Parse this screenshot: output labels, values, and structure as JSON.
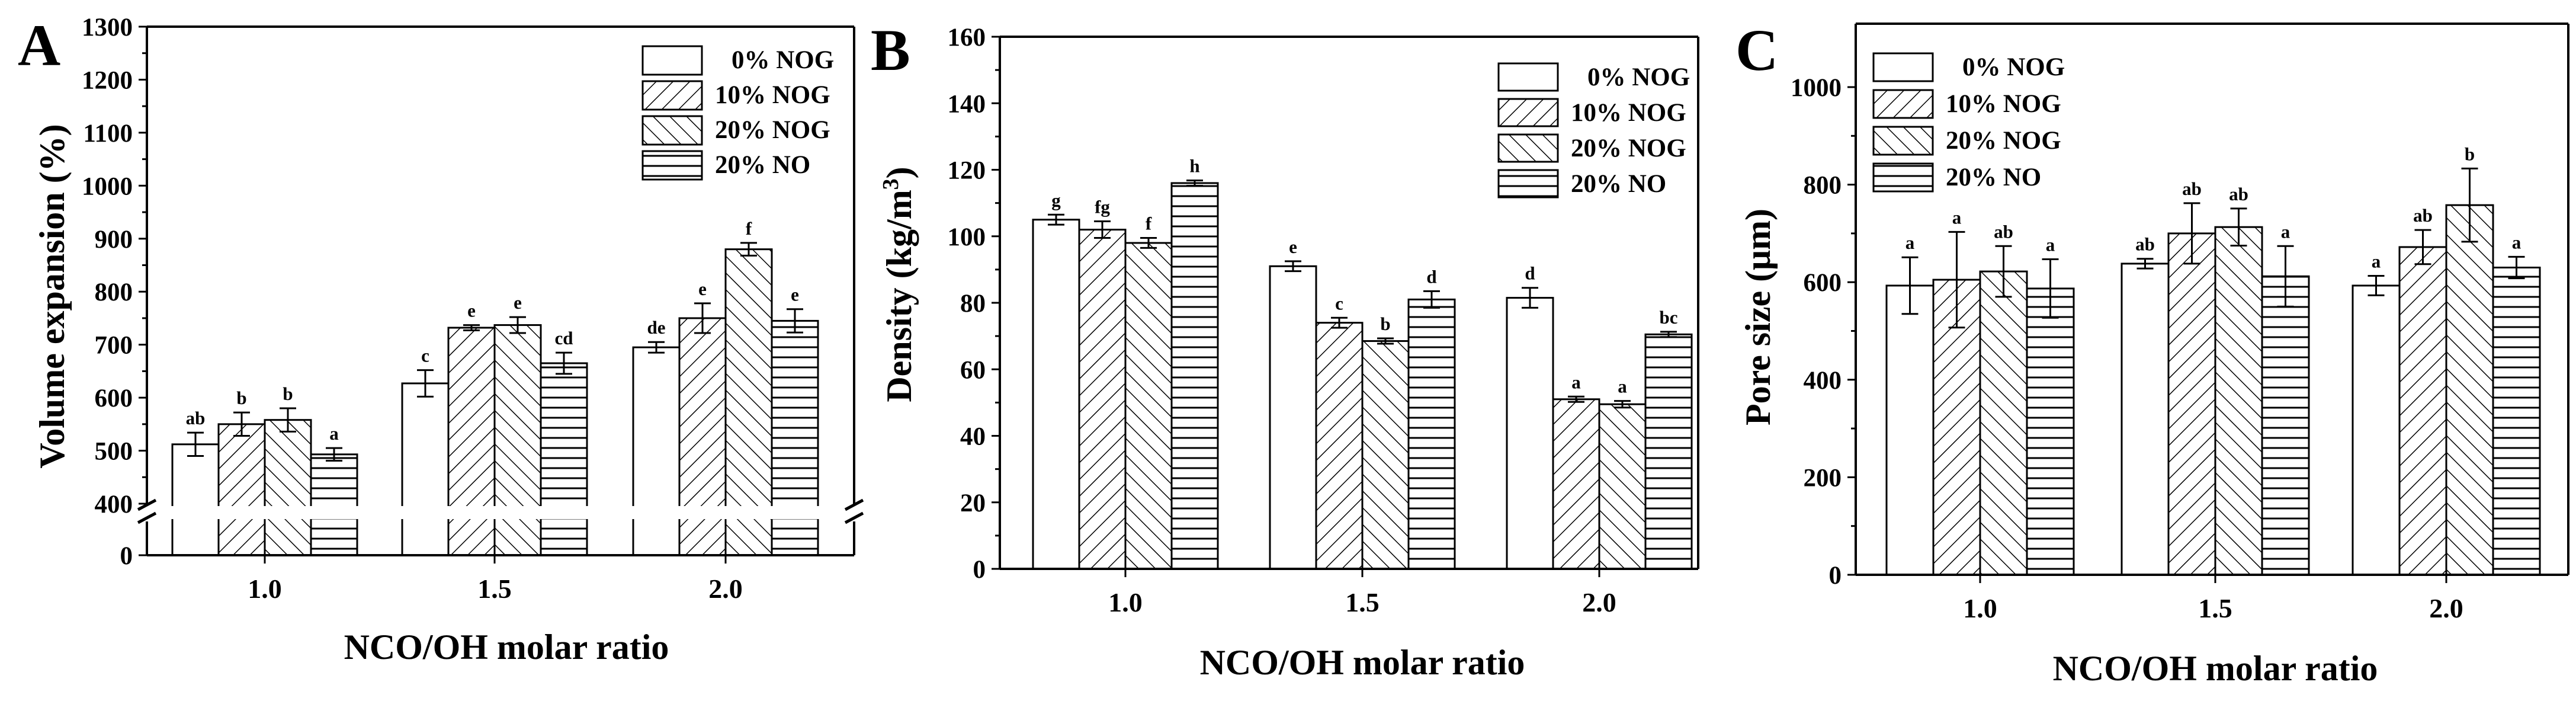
{
  "colors": {
    "ink": "#000000",
    "background": "#ffffff"
  },
  "chart_data": [
    {
      "type": "bar",
      "panel": "A",
      "ylabel": "Volume expansion (%)",
      "xlabel": "NCO/OH molar ratio",
      "categories": [
        "1.0",
        "1.5",
        "2.0"
      ],
      "axis_break": [
        0,
        400
      ],
      "ylim": [
        400,
        1300
      ],
      "yticks": [
        0,
        400,
        500,
        600,
        700,
        800,
        900,
        1000,
        1100,
        1200,
        1300
      ],
      "legend_position": "top-right",
      "series": [
        {
          "name": "0% NOG",
          "pattern": "none",
          "values": [
            512,
            627,
            695
          ],
          "errors": [
            22,
            25,
            10
          ],
          "labels": [
            "ab",
            "c",
            "de"
          ]
        },
        {
          "name": "10% NOG",
          "pattern": "diag-right",
          "values": [
            550,
            732,
            750
          ],
          "errors": [
            22,
            5,
            28
          ],
          "labels": [
            "b",
            "e",
            "e"
          ]
        },
        {
          "name": "20% NOG",
          "pattern": "diag-left",
          "values": [
            558,
            737,
            880
          ],
          "errors": [
            22,
            15,
            12
          ],
          "labels": [
            "b",
            "e",
            "f"
          ]
        },
        {
          "name": "20% NO",
          "pattern": "horizontal",
          "values": [
            493,
            665,
            745
          ],
          "errors": [
            12,
            20,
            22
          ],
          "labels": [
            "a",
            "cd",
            "e"
          ]
        }
      ]
    },
    {
      "type": "bar",
      "panel": "B",
      "ylabel": "Density (kg/m",
      "ylabel_sup": "3",
      "ylabel_end": ")",
      "xlabel": "NCO/OH molar ratio",
      "categories": [
        "1.0",
        "1.5",
        "2.0"
      ],
      "ylim": [
        0,
        160
      ],
      "yticks": [
        0,
        20,
        40,
        60,
        80,
        100,
        120,
        140,
        160
      ],
      "legend_position": "top-right",
      "series": [
        {
          "name": "0% NOG",
          "pattern": "none",
          "values": [
            105,
            91,
            81.5
          ],
          "errors": [
            1.5,
            1.5,
            3
          ],
          "labels": [
            "g",
            "e",
            "d"
          ]
        },
        {
          "name": "10% NOG",
          "pattern": "diag-right",
          "values": [
            102,
            74,
            51
          ],
          "errors": [
            2.5,
            1.5,
            0.8
          ],
          "labels": [
            "fg",
            "c",
            "a"
          ]
        },
        {
          "name": "20% NOG",
          "pattern": "diag-left",
          "values": [
            98,
            68.5,
            49.5
          ],
          "errors": [
            1.5,
            0.8,
            1
          ],
          "labels": [
            "f",
            "b",
            "a"
          ]
        },
        {
          "name": "20% NO",
          "pattern": "horizontal",
          "values": [
            116,
            81,
            70.5
          ],
          "errors": [
            0.8,
            2.5,
            0.8
          ],
          "labels": [
            "h",
            "d",
            "bc"
          ]
        }
      ]
    },
    {
      "type": "bar",
      "panel": "C",
      "ylabel": "Pore size (μm)",
      "xlabel": "NCO/OH molar ratio",
      "categories": [
        "1.0",
        "1.5",
        "2.0"
      ],
      "ylim": [
        0,
        1130
      ],
      "yticks": [
        0,
        200,
        400,
        600,
        800,
        1000
      ],
      "legend_position": "top-left",
      "series": [
        {
          "name": "0% NOG",
          "pattern": "none",
          "values": [
            593,
            638,
            593
          ],
          "errors": [
            58,
            10,
            20
          ],
          "labels": [
            "a",
            "ab",
            "a"
          ]
        },
        {
          "name": "10% NOG",
          "pattern": "diag-right",
          "values": [
            605,
            700,
            672
          ],
          "errors": [
            98,
            62,
            35
          ],
          "labels": [
            "a",
            "ab",
            "ab"
          ]
        },
        {
          "name": "20% NOG",
          "pattern": "diag-left",
          "values": [
            622,
            713,
            758
          ],
          "errors": [
            52,
            38,
            75
          ],
          "labels": [
            "ab",
            "ab",
            "b"
          ]
        },
        {
          "name": "20% NO",
          "pattern": "horizontal",
          "values": [
            587,
            612,
            630
          ],
          "errors": [
            60,
            62,
            22
          ],
          "labels": [
            "a",
            "a",
            "a"
          ]
        }
      ]
    }
  ]
}
